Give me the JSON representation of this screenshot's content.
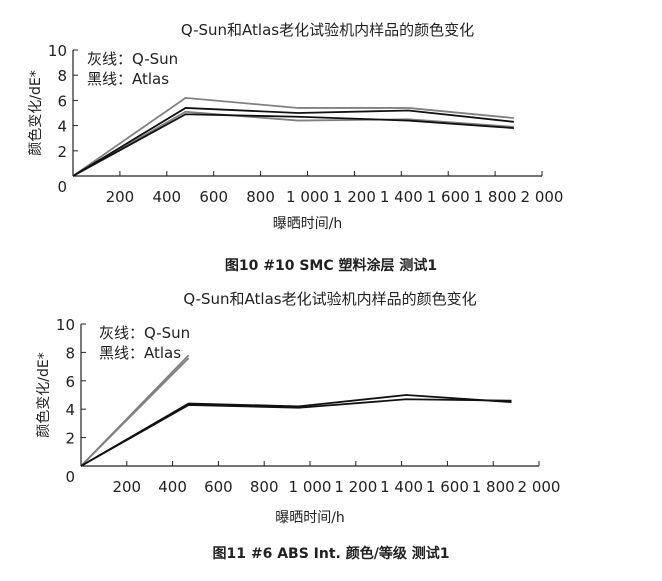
{
  "chart_data": [
    {
      "type": "line",
      "title": "Q-Sun和Atlas老化试验机内样品的颜色变化",
      "caption": "图10  #10 SMC 塑料涂层 测试1",
      "xlabel": "曝晒时间/h",
      "ylabel": "颜色变化/dE*",
      "legend": [
        "灰线：Q-Sun",
        "黑线：Atlas"
      ],
      "legend_position": "top-left",
      "xlim": [
        0,
        2000
      ],
      "ylim": [
        0,
        10
      ],
      "xticks": [
        "200",
        "400",
        "600",
        "800",
        "1 000",
        "1 200",
        "1 400",
        "1 600",
        "1 800",
        "2 000"
      ],
      "yticks": [
        "0",
        "2",
        "4",
        "6",
        "8",
        "10"
      ],
      "colors": {
        "Q-Sun": "#808080",
        "Atlas": "#111111"
      },
      "series": [
        {
          "group": "Q-Sun",
          "x": [
            0,
            480,
            960,
            1430,
            1880
          ],
          "y": [
            0,
            6.2,
            5.4,
            5.4,
            4.6
          ]
        },
        {
          "group": "Q-Sun",
          "x": [
            0,
            480,
            960,
            1430,
            1880
          ],
          "y": [
            0,
            5.1,
            4.4,
            4.5,
            3.9
          ]
        },
        {
          "group": "Atlas",
          "x": [
            0,
            480,
            960,
            1430,
            1880
          ],
          "y": [
            0,
            5.4,
            5.0,
            5.2,
            4.3
          ]
        },
        {
          "group": "Atlas",
          "x": [
            0,
            480,
            960,
            1430,
            1880
          ],
          "y": [
            0,
            4.9,
            4.7,
            4.4,
            3.8
          ]
        }
      ]
    },
    {
      "type": "line",
      "title": "Q-Sun和Atlas老化试验机内样品的颜色变化",
      "caption": "图11  #6 ABS Int. 颜色/等级 测试1",
      "xlabel": "曝晒时间/h",
      "ylabel": "颜色变化/dE*",
      "legend": [
        "灰线：Q-Sun",
        "黑线：Atlas"
      ],
      "legend_position": "top-left",
      "xlim": [
        0,
        2000
      ],
      "ylim": [
        0,
        10
      ],
      "xticks": [
        "200",
        "400",
        "600",
        "800",
        "1 000",
        "1 200",
        "1 400",
        "1 600",
        "1 800",
        "2 000"
      ],
      "yticks": [
        "0",
        "2",
        "4",
        "6",
        "8",
        "10"
      ],
      "colors": {
        "Q-Sun": "#808080",
        "Atlas": "#111111"
      },
      "series": [
        {
          "group": "Q-Sun",
          "x": [
            0,
            470
          ],
          "y": [
            0,
            7.8
          ]
        },
        {
          "group": "Q-Sun",
          "x": [
            0,
            470
          ],
          "y": [
            0,
            7.6
          ]
        },
        {
          "group": "Atlas",
          "x": [
            0,
            470,
            950,
            1420,
            1880
          ],
          "y": [
            0,
            4.4,
            4.2,
            5.0,
            4.5
          ]
        },
        {
          "group": "Atlas",
          "x": [
            0,
            470,
            950,
            1420,
            1880
          ],
          "y": [
            0,
            4.3,
            4.1,
            4.7,
            4.6
          ]
        }
      ]
    }
  ]
}
